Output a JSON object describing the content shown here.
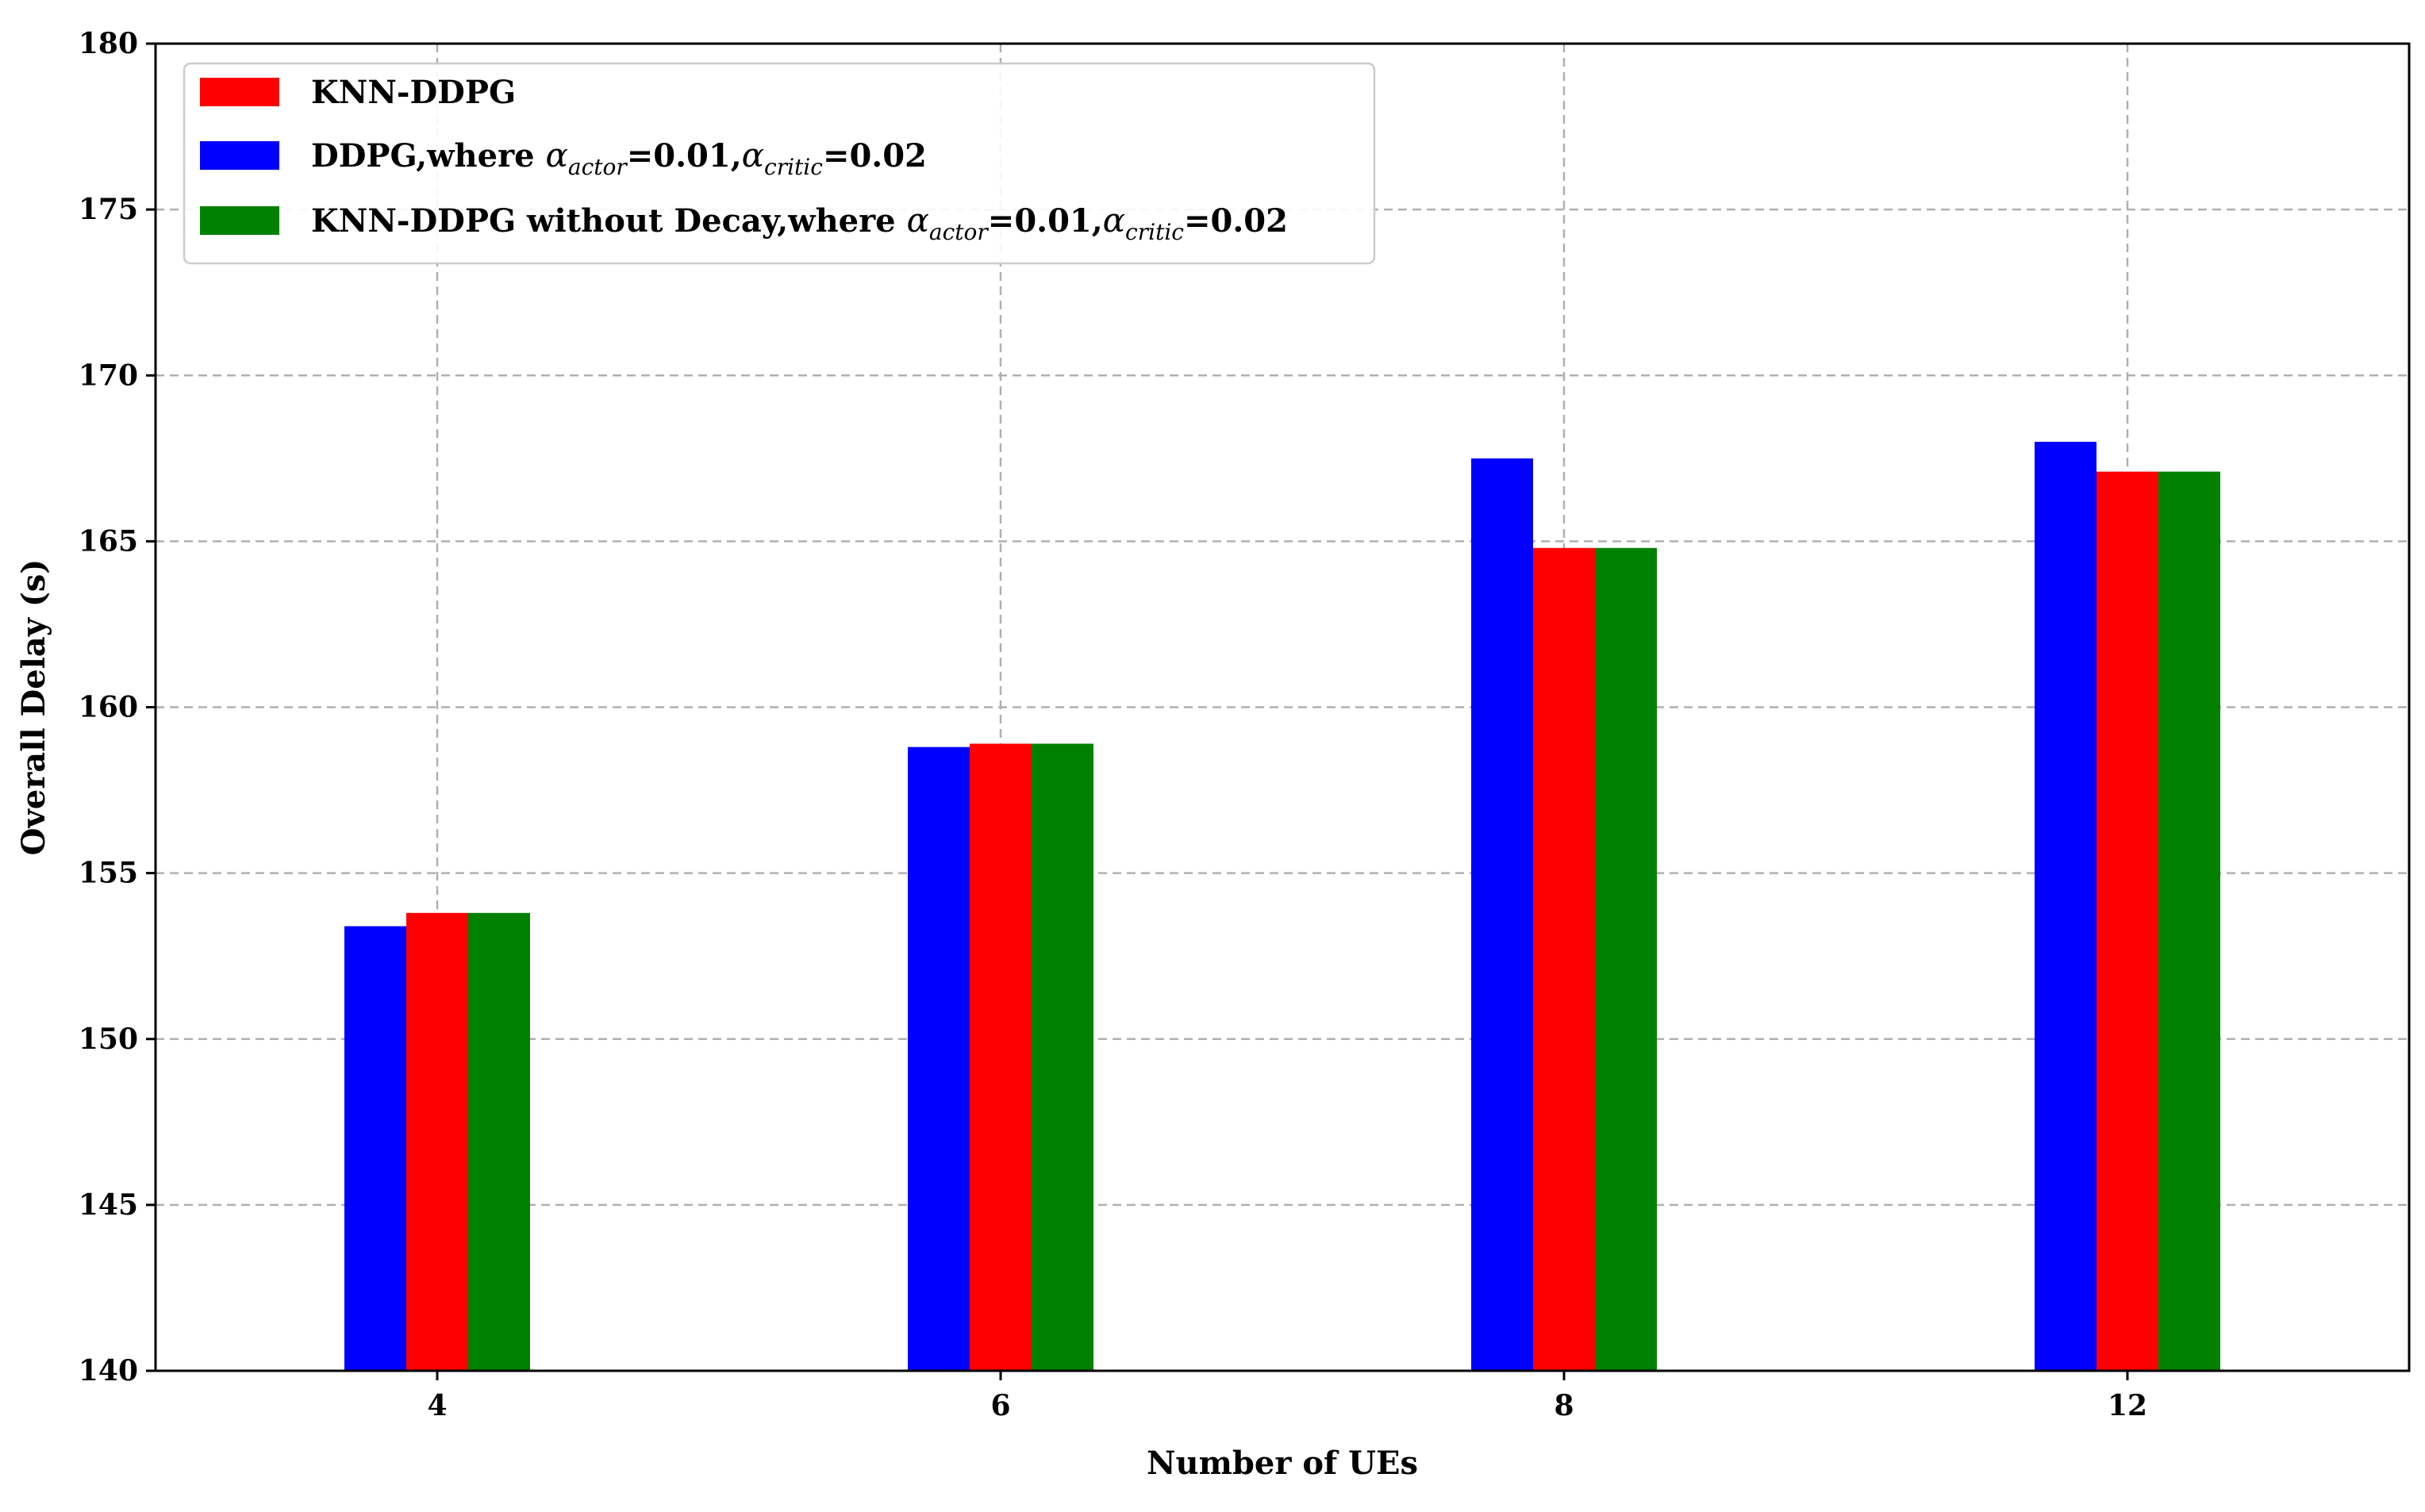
{
  "chart_data": {
    "type": "bar",
    "title": "",
    "xlabel": "Number of UEs",
    "ylabel": "Overall Delay (s)",
    "categories": [
      "4",
      "6",
      "8",
      "12"
    ],
    "ylim": [
      140,
      180
    ],
    "yticks": [
      "140",
      "145",
      "150",
      "155",
      "160",
      "165",
      "170",
      "175",
      "180"
    ],
    "grid": true,
    "legend_position": "top-left",
    "series": [
      {
        "name": "DDPG,where αactor=0.01,αcritic=0.02",
        "color": "#0000ff",
        "values": [
          153.4,
          158.8,
          167.5,
          168.0
        ]
      },
      {
        "name": "KNN-DDPG",
        "color": "#ff0000",
        "values": [
          153.8,
          158.9,
          164.8,
          167.1
        ]
      },
      {
        "name": "KNN-DDPG without Decay,where αactor=0.01,αcritic=0.02",
        "color": "#008000",
        "values": [
          153.8,
          158.9,
          164.8,
          167.1
        ]
      }
    ],
    "legend": {
      "entries": [
        {
          "series": 1,
          "parts": [
            {
              "text": "KNN-DDPG"
            }
          ]
        },
        {
          "series": 0,
          "parts": [
            {
              "text": "DDPG,where "
            },
            {
              "text": "α",
              "style": "italic"
            },
            {
              "text": "actor",
              "style": "sub"
            },
            {
              "text": "=0.01,"
            },
            {
              "text": "α",
              "style": "italic"
            },
            {
              "text": "critic",
              "style": "sub"
            },
            {
              "text": "=0.02"
            }
          ]
        },
        {
          "series": 2,
          "parts": [
            {
              "text": "KNN-DDPG without Decay,where "
            },
            {
              "text": "α",
              "style": "italic"
            },
            {
              "text": "actor",
              "style": "sub"
            },
            {
              "text": "=0.01,"
            },
            {
              "text": "α",
              "style": "italic"
            },
            {
              "text": "critic",
              "style": "sub"
            },
            {
              "text": "=0.02"
            }
          ]
        }
      ]
    }
  }
}
